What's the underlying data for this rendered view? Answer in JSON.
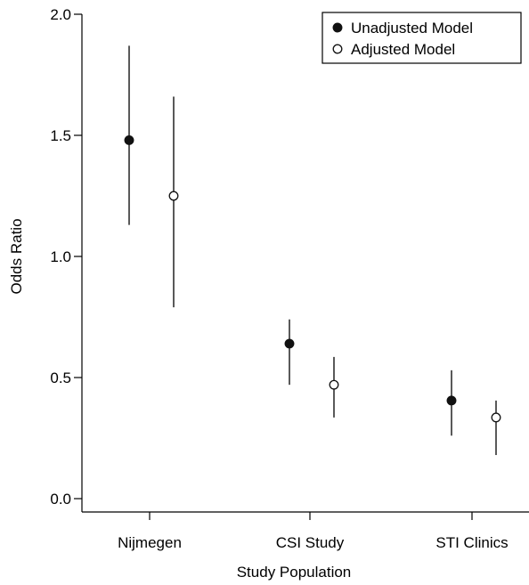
{
  "chart_data": {
    "type": "scatter",
    "xlabel": "Study Population",
    "ylabel": "Odds Ratio",
    "categories": [
      "Nijmegen",
      "CSI Study",
      "STI Clinics"
    ],
    "ylim": [
      0.0,
      2.0
    ],
    "yticks": [
      "0.0",
      "0.5",
      "1.0",
      "1.5",
      "2.0"
    ],
    "legend_position": "top-right",
    "series": [
      {
        "name": "Unadjusted Model",
        "marker": "filled-circle",
        "values": [
          1.48,
          0.64,
          0.405
        ],
        "lower": [
          1.13,
          0.47,
          0.26
        ],
        "upper": [
          1.87,
          0.74,
          0.53
        ]
      },
      {
        "name": "Adjusted Model",
        "marker": "open-circle",
        "values": [
          1.25,
          0.47,
          0.335
        ],
        "lower": [
          0.79,
          0.335,
          0.18
        ],
        "upper": [
          1.66,
          0.585,
          0.405
        ]
      }
    ],
    "colors": {
      "marker": "#111111",
      "open_fill": "#ffffff",
      "line": "#000000"
    }
  }
}
